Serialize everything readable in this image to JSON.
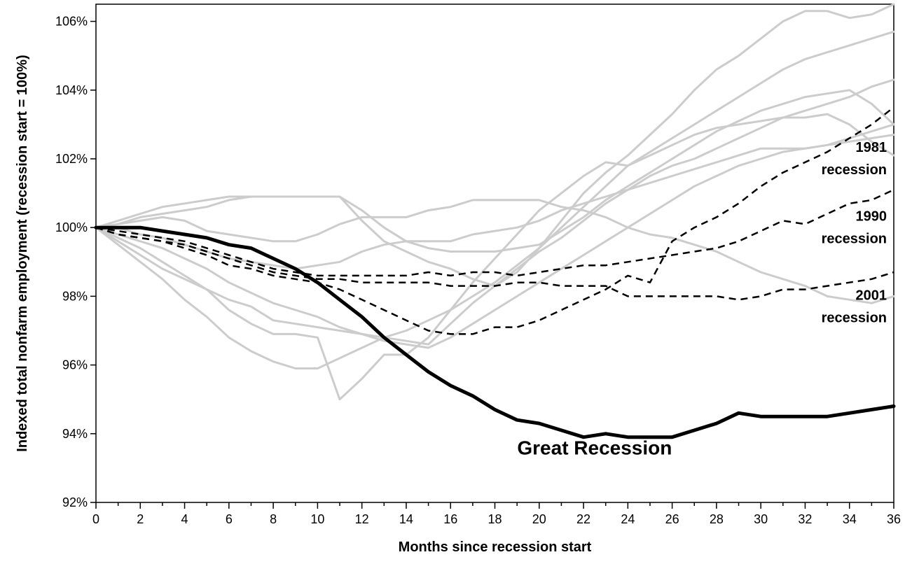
{
  "chart_data": {
    "type": "line",
    "xlabel": "Months since recession start",
    "ylabel": "Indexed total nonfarm employment (recession start = 100%)",
    "xlim": [
      0,
      36
    ],
    "ylim": [
      92,
      106.5
    ],
    "x_ticks": [
      0,
      2,
      4,
      6,
      8,
      10,
      12,
      14,
      16,
      18,
      20,
      22,
      24,
      26,
      28,
      30,
      32,
      34,
      36
    ],
    "x_tick_labels": [
      "0",
      "2",
      "4",
      "6",
      "8",
      "10",
      "12",
      "14",
      "16",
      "18",
      "20",
      "22",
      "24",
      "26",
      "28",
      "30",
      "32",
      "34",
      "36"
    ],
    "y_ticks": [
      92,
      94,
      96,
      98,
      100,
      102,
      104,
      106
    ],
    "y_tick_labels": [
      "92%",
      "94%",
      "96%",
      "98%",
      "100%",
      "102%",
      "104%",
      "106%"
    ],
    "grid": false,
    "colors": {
      "other": "#cccccc",
      "highlight": "#000000"
    },
    "x": [
      0,
      1,
      2,
      3,
      4,
      5,
      6,
      7,
      8,
      9,
      10,
      11,
      12,
      13,
      14,
      15,
      16,
      17,
      18,
      19,
      20,
      21,
      22,
      23,
      24,
      25,
      26,
      27,
      28,
      29,
      30,
      31,
      32,
      33,
      34,
      35,
      36
    ],
    "series": [
      {
        "values": [
          100,
          100.2,
          100.4,
          100.6,
          100.7,
          100.8,
          100.9,
          100.9,
          100.9,
          100.9,
          100.9,
          100.9,
          100.5,
          100.0,
          99.6,
          99.4,
          99.3,
          99.3,
          99.3,
          99.4,
          99.5,
          99.9,
          100.3,
          100.8,
          101.2,
          101.6,
          102.0,
          102.4,
          102.8,
          103.1,
          103.4,
          103.6,
          103.8,
          103.9,
          104.0,
          103.6,
          103.0
        ],
        "style": "other"
      },
      {
        "values": [
          100,
          100.1,
          100.3,
          100.4,
          100.5,
          100.6,
          100.8,
          100.9,
          100.9,
          100.9,
          100.9,
          100.9,
          100.2,
          99.6,
          99.3,
          99.0,
          98.8,
          98.5,
          98.3,
          98.7,
          99.4,
          100.2,
          101.0,
          101.6,
          102.1,
          102.7,
          103.3,
          104.0,
          104.6,
          105.0,
          105.5,
          106.0,
          106.3,
          106.3,
          106.1,
          106.2,
          106.5
        ],
        "style": "other"
      },
      {
        "values": [
          100,
          100.1,
          100.2,
          100.3,
          100.2,
          99.9,
          99.8,
          99.7,
          99.6,
          99.6,
          99.8,
          100.1,
          100.3,
          100.3,
          100.3,
          100.5,
          100.6,
          100.8,
          100.8,
          100.8,
          100.8,
          100.6,
          100.5,
          100.3,
          100.0,
          99.8,
          99.7,
          99.5,
          99.3,
          99.0,
          98.7,
          98.5,
          98.3,
          98.0,
          97.9,
          97.8,
          98.0
        ],
        "style": "other"
      },
      {
        "values": [
          100,
          100.0,
          99.8,
          99.7,
          99.5,
          99.3,
          99.1,
          99.0,
          98.9,
          98.8,
          98.9,
          99.0,
          99.3,
          99.5,
          99.6,
          99.6,
          99.6,
          99.8,
          99.9,
          100.0,
          100.2,
          100.5,
          100.7,
          100.9,
          101.1,
          101.3,
          101.5,
          101.7,
          101.9,
          102.1,
          102.3,
          102.3,
          102.3,
          102.4,
          102.6,
          102.8,
          103.0
        ],
        "style": "other"
      },
      {
        "values": [
          100,
          99.7,
          99.4,
          99.0,
          98.6,
          98.2,
          97.6,
          97.2,
          96.9,
          96.9,
          96.8,
          95.0,
          95.6,
          96.3,
          96.3,
          96.8,
          97.6,
          98.4,
          99.1,
          99.8,
          100.5,
          101.0,
          101.5,
          101.9,
          101.8,
          102.1,
          102.4,
          102.7,
          102.9,
          103.0,
          103.1,
          103.2,
          103.2,
          103.3,
          103.0,
          102.5,
          102.1
        ],
        "style": "other"
      },
      {
        "values": [
          100,
          99.5,
          99.0,
          98.5,
          97.9,
          97.4,
          96.8,
          96.4,
          96.1,
          95.9,
          95.9,
          96.2,
          96.5,
          96.8,
          97.0,
          97.3,
          97.6,
          98.0,
          98.4,
          98.9,
          99.4,
          100.0,
          100.6,
          101.2,
          101.8,
          102.2,
          102.6,
          103.0,
          103.4,
          103.8,
          104.2,
          104.6,
          104.9,
          105.1,
          105.3,
          105.5,
          105.7
        ],
        "style": "other"
      },
      {
        "values": [
          100,
          99.6,
          99.2,
          98.8,
          98.5,
          98.2,
          97.9,
          97.7,
          97.3,
          97.2,
          97.1,
          97.0,
          96.9,
          96.8,
          96.7,
          96.6,
          97.2,
          97.8,
          98.3,
          98.8,
          99.3,
          99.7,
          100.2,
          100.7,
          101.1,
          101.5,
          101.8,
          102.0,
          102.3,
          102.6,
          102.9,
          103.2,
          103.4,
          103.6,
          103.8,
          104.1,
          104.3
        ],
        "style": "other"
      },
      {
        "values": [
          100,
          99.8,
          99.6,
          99.4,
          99.1,
          98.8,
          98.4,
          98.1,
          97.8,
          97.6,
          97.4,
          97.1,
          96.9,
          96.7,
          96.6,
          96.5,
          96.8,
          97.2,
          97.6,
          98.0,
          98.4,
          98.8,
          99.2,
          99.6,
          100.0,
          100.4,
          100.8,
          101.2,
          101.5,
          101.8,
          102.0,
          102.2,
          102.3,
          102.4,
          102.5,
          102.6,
          102.7
        ],
        "style": "other"
      },
      {
        "name": "1981 recession",
        "values": [
          100,
          99.8,
          99.7,
          99.6,
          99.4,
          99.2,
          98.9,
          98.8,
          98.6,
          98.5,
          98.4,
          98.2,
          97.9,
          97.6,
          97.3,
          97.0,
          96.9,
          96.9,
          97.1,
          97.1,
          97.3,
          97.6,
          97.9,
          98.2,
          98.6,
          98.4,
          99.6,
          100.0,
          100.3,
          100.7,
          101.2,
          101.6,
          101.9,
          102.2,
          102.6,
          103.0,
          103.5
        ],
        "style": "dashed"
      },
      {
        "name": "1990 recession",
        "values": [
          100,
          99.9,
          99.8,
          99.7,
          99.6,
          99.4,
          99.2,
          99.0,
          98.8,
          98.7,
          98.6,
          98.6,
          98.6,
          98.6,
          98.6,
          98.7,
          98.6,
          98.7,
          98.7,
          98.6,
          98.7,
          98.8,
          98.9,
          98.9,
          99.0,
          99.1,
          99.2,
          99.3,
          99.4,
          99.6,
          99.9,
          100.2,
          100.1,
          100.4,
          100.7,
          100.8,
          101.1
        ],
        "style": "dashed"
      },
      {
        "name": "2001 recession",
        "values": [
          100,
          99.8,
          99.7,
          99.6,
          99.5,
          99.3,
          99.1,
          98.9,
          98.7,
          98.6,
          98.5,
          98.5,
          98.4,
          98.4,
          98.4,
          98.4,
          98.3,
          98.3,
          98.3,
          98.4,
          98.4,
          98.3,
          98.3,
          98.3,
          98.0,
          98.0,
          98.0,
          98.0,
          98.0,
          97.9,
          98.0,
          98.2,
          98.2,
          98.3,
          98.4,
          98.5,
          98.7
        ],
        "style": "dashed"
      },
      {
        "name": "Great Recession",
        "values": [
          100,
          100.0,
          100.0,
          99.9,
          99.8,
          99.7,
          99.5,
          99.4,
          99.1,
          98.8,
          98.4,
          97.9,
          97.4,
          96.8,
          96.3,
          95.8,
          95.4,
          95.1,
          94.7,
          94.4,
          94.3,
          94.1,
          93.9,
          94.0,
          93.9,
          93.9,
          93.9,
          94.1,
          94.3,
          94.6,
          94.5,
          94.5,
          94.5,
          94.5,
          94.6,
          94.7,
          94.8
        ],
        "style": "bold"
      }
    ],
    "annotations": [
      {
        "lines": [
          "1981",
          "recession"
        ],
        "x": 36,
        "y": 102.2,
        "anchor": "end"
      },
      {
        "lines": [
          "1990",
          "recession"
        ],
        "x": 36,
        "y": 100.2,
        "anchor": "end"
      },
      {
        "lines": [
          "2001",
          "recession"
        ],
        "x": 36,
        "y": 97.9,
        "anchor": "end"
      },
      {
        "lines": [
          "Great Recession"
        ],
        "x": 22.5,
        "y": 93.4,
        "anchor": "middle",
        "big": true
      }
    ]
  }
}
